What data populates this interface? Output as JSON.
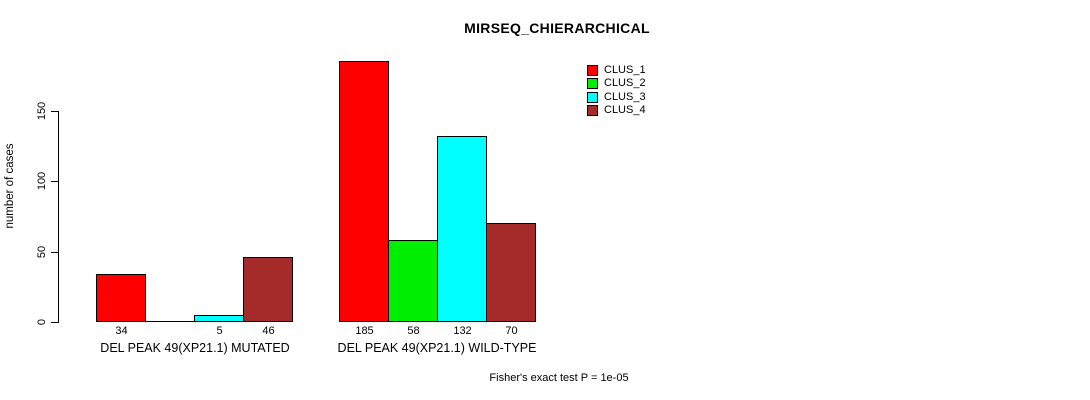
{
  "chart_data": {
    "type": "bar",
    "title": "MIRSEQ_CHIERARCHICAL",
    "ylabel": "number of cases",
    "ylim": [
      0,
      150
    ],
    "yticks": [
      0,
      50,
      100,
      150
    ],
    "grid": false,
    "legend_position": "top-right",
    "categories": [
      "DEL PEAK 49(XP21.1) MUTATED",
      "DEL PEAK 49(XP21.1) WILD-TYPE"
    ],
    "series": [
      {
        "name": "CLUS_1",
        "color": "#ff0000",
        "values": [
          34,
          185
        ]
      },
      {
        "name": "CLUS_2",
        "color": "#00ee00",
        "values": [
          0,
          58
        ]
      },
      {
        "name": "CLUS_3",
        "color": "#00ffff",
        "values": [
          5,
          132
        ]
      },
      {
        "name": "CLUS_4",
        "color": "#a52a2a",
        "values": [
          46,
          70
        ]
      }
    ],
    "bar_value_labels": [
      [
        "34",
        "",
        "5",
        "46"
      ],
      [
        "185",
        "58",
        "132",
        "70"
      ]
    ],
    "annotation": "Fisher's exact test P = 1e-05"
  }
}
